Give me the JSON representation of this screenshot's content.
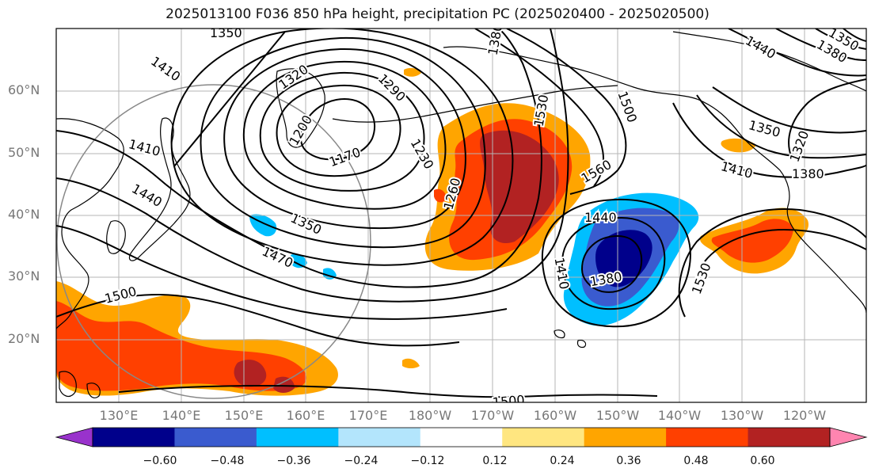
{
  "title": "2025013100 F036 850 hPa height, precipitation PC (2025020400 - 2025020500)",
  "lat_labels": [
    "60°N",
    "50°N",
    "40°N",
    "30°N",
    "20°N"
  ],
  "lon_labels": [
    "130°E",
    "140°E",
    "150°E",
    "160°E",
    "170°E",
    "180°W",
    "170°W",
    "160°W",
    "150°W",
    "140°W",
    "130°W",
    "120°W"
  ],
  "colorbar": {
    "ticks": [
      "−0.60",
      "−0.48",
      "−0.36",
      "−0.24",
      "−0.12",
      "0.12",
      "0.24",
      "0.36",
      "0.48",
      "0.60"
    ],
    "colors": [
      "#9932cc",
      "#00008b",
      "#3a5bcf",
      "#00bfff",
      "#b3e5fc",
      "#ffffff",
      "#ffe680",
      "#ffa500",
      "#ff4000",
      "#b22222",
      "#ff85b0"
    ]
  },
  "contour_labels": [
    "1350",
    "1320",
    "1290",
    "1380",
    "1530",
    "1500",
    "1440",
    "1380",
    "1350",
    "1410",
    "1200",
    "1170",
    "1230",
    "1260",
    "1410",
    "1440",
    "1350",
    "1470",
    "1500",
    "1560",
    "1440",
    "1410",
    "1380",
    "1530",
    "1500",
    "1350",
    "1320",
    "1410",
    "1380"
  ]
}
